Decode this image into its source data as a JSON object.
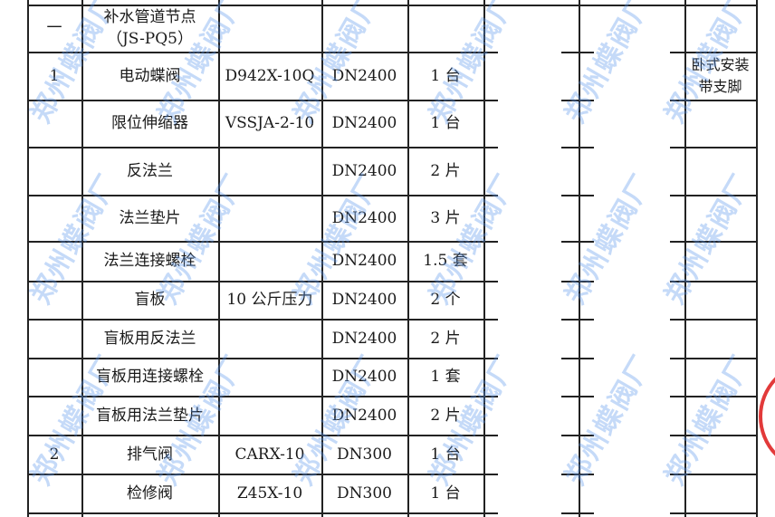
{
  "watermark": "郑州蝶阀厂",
  "stamp_color": "#e23a3a",
  "rows": [
    {
      "no": "一",
      "name": "补水管道节点\n（JS-PQ5）",
      "model": "",
      "size": "",
      "qty": "",
      "note": ""
    },
    {
      "no": "1",
      "name": "电动蝶阀",
      "model": "D942X-10Q",
      "size": "DN2400",
      "qty": "1 台",
      "note": "卧式安装\n带支脚"
    },
    {
      "no": "",
      "name": "限位伸缩器",
      "model": "VSSJA-2-10",
      "size": "DN2400",
      "qty": "1 台",
      "note": ""
    },
    {
      "no": "",
      "name": "反法兰",
      "model": "",
      "size": "DN2400",
      "qty": "2 片",
      "note": ""
    },
    {
      "no": "",
      "name": "法兰垫片",
      "model": "",
      "size": "DN2400",
      "qty": "3 片",
      "note": ""
    },
    {
      "no": "",
      "name": "法兰连接螺栓",
      "model": "",
      "size": "DN2400",
      "qty": "1.5 套",
      "note": ""
    },
    {
      "no": "",
      "name": "盲板",
      "model": "10 公斤压力",
      "size": "DN2400",
      "qty": "2 个",
      "note": ""
    },
    {
      "no": "",
      "name": "盲板用反法兰",
      "model": "",
      "size": "DN2400",
      "qty": "2 片",
      "note": ""
    },
    {
      "no": "",
      "name": "盲板用连接螺栓",
      "model": "",
      "size": "DN2400",
      "qty": "1 套",
      "note": ""
    },
    {
      "no": "",
      "name": "盲板用法兰垫片",
      "model": "",
      "size": "DN2400",
      "qty": "2 片",
      "note": ""
    },
    {
      "no": "2",
      "name": "排气阀",
      "model": "CARX-10",
      "size": "DN300",
      "qty": "1 台",
      "note": ""
    },
    {
      "no": "",
      "name": "检修阀",
      "model": "Z45X-10",
      "size": "DN300",
      "qty": "1 台",
      "note": ""
    }
  ]
}
